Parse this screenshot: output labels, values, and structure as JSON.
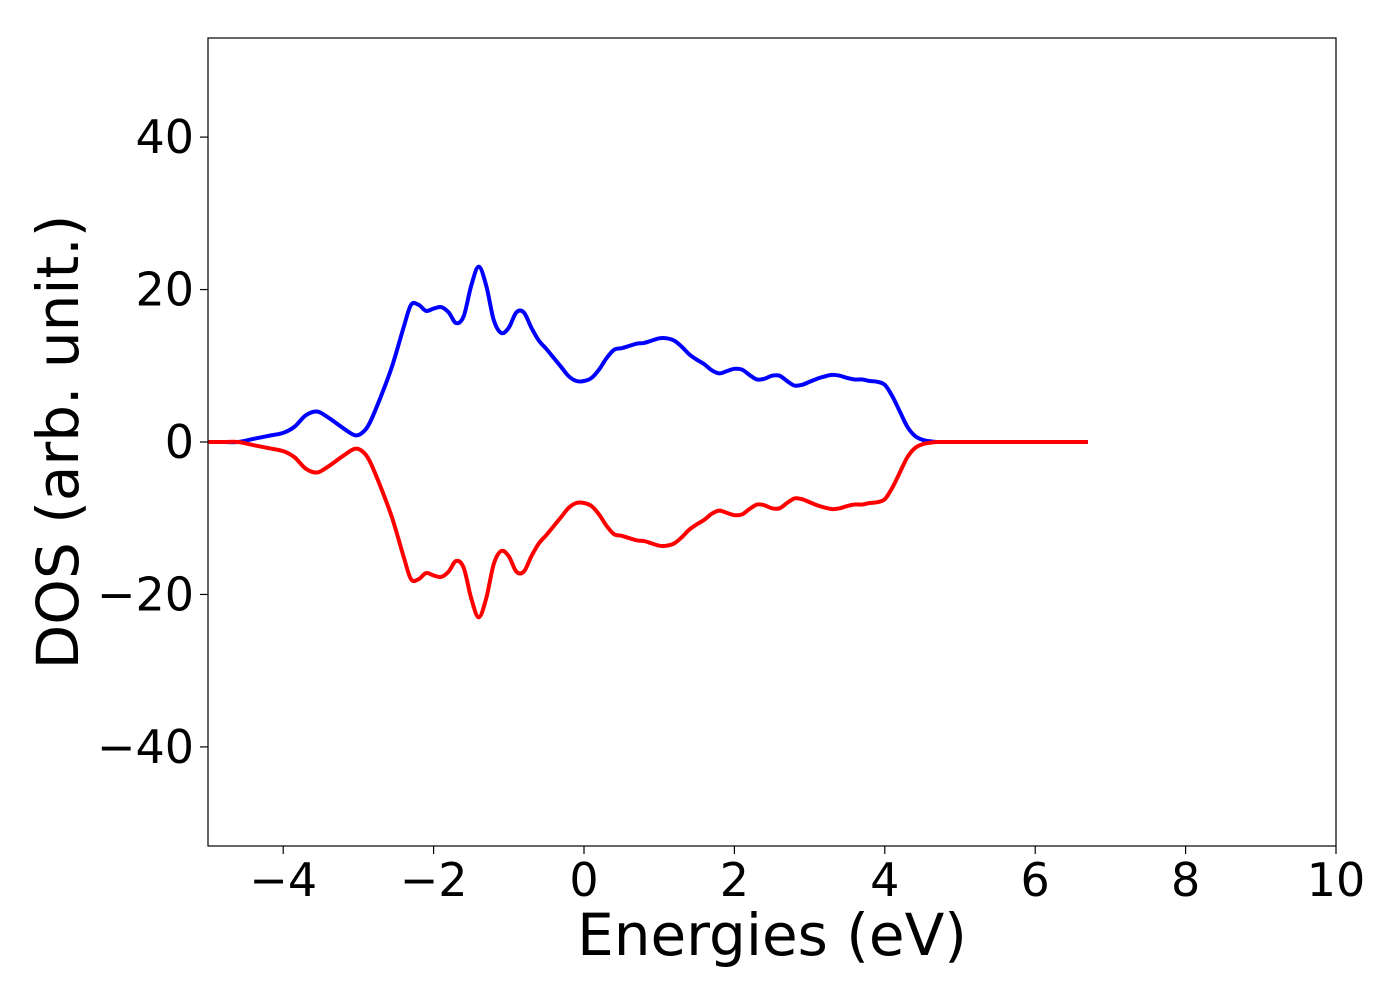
{
  "chart_data": {
    "type": "line",
    "title": "",
    "xlabel": "Energies (eV)",
    "ylabel": "DOS (arb. unit.)",
    "xlim": [
      -5,
      10
    ],
    "ylim": [
      -53,
      53
    ],
    "xticks": [
      -4,
      -2,
      0,
      2,
      4,
      6,
      8,
      10
    ],
    "yticks": [
      -40,
      -20,
      0,
      20,
      40
    ],
    "xtick_labels": [
      "−4",
      "−2",
      "0",
      "2",
      "4",
      "6",
      "8",
      "10"
    ],
    "ytick_labels": [
      "−40",
      "−20",
      "0",
      "20",
      "40"
    ],
    "grid": false,
    "legend": "none",
    "series": [
      {
        "color": "#0000ff",
        "x": [
          -5.0,
          -4.8,
          -4.6,
          -4.4,
          -4.2,
          -4.0,
          -3.85,
          -3.7,
          -3.55,
          -3.4,
          -3.2,
          -3.05,
          -2.95,
          -2.85,
          -2.7,
          -2.55,
          -2.4,
          -2.3,
          -2.2,
          -2.1,
          -2.0,
          -1.9,
          -1.8,
          -1.7,
          -1.6,
          -1.5,
          -1.4,
          -1.3,
          -1.2,
          -1.1,
          -1.0,
          -0.9,
          -0.8,
          -0.7,
          -0.6,
          -0.5,
          -0.4,
          -0.3,
          -0.2,
          -0.1,
          0.0,
          0.1,
          0.2,
          0.3,
          0.4,
          0.5,
          0.6,
          0.7,
          0.8,
          0.9,
          1.0,
          1.1,
          1.2,
          1.3,
          1.4,
          1.5,
          1.6,
          1.7,
          1.8,
          1.9,
          2.0,
          2.1,
          2.2,
          2.3,
          2.4,
          2.5,
          2.6,
          2.7,
          2.8,
          2.9,
          3.0,
          3.1,
          3.2,
          3.3,
          3.4,
          3.5,
          3.6,
          3.7,
          3.8,
          3.9,
          4.0,
          4.1,
          4.2,
          4.3,
          4.4,
          4.5,
          4.6,
          4.7,
          4.8,
          4.9,
          5.0,
          5.5,
          6.0,
          6.5,
          6.7
        ],
        "y": [
          0.0,
          0.0,
          0.0,
          0.4,
          0.8,
          1.2,
          2.0,
          3.5,
          4.0,
          3.2,
          1.8,
          0.9,
          1.2,
          2.5,
          6.0,
          10.0,
          15.0,
          18.0,
          18.0,
          17.2,
          17.5,
          17.7,
          17.0,
          15.6,
          16.5,
          20.5,
          23.0,
          20.5,
          16.0,
          14.3,
          15.0,
          17.0,
          17.0,
          15.0,
          13.3,
          12.2,
          11.0,
          9.8,
          8.6,
          8.0,
          8.0,
          8.4,
          9.5,
          11.0,
          12.1,
          12.3,
          12.6,
          12.9,
          13.0,
          13.3,
          13.6,
          13.6,
          13.3,
          12.5,
          11.5,
          10.8,
          10.2,
          9.4,
          9.0,
          9.3,
          9.6,
          9.5,
          8.8,
          8.2,
          8.3,
          8.7,
          8.7,
          8.0,
          7.4,
          7.5,
          7.9,
          8.3,
          8.6,
          8.8,
          8.7,
          8.4,
          8.2,
          8.2,
          8.0,
          7.9,
          7.5,
          6.0,
          4.0,
          2.0,
          0.8,
          0.3,
          0.1,
          0.0,
          0.0,
          0.0,
          0.0,
          0.0,
          0.0,
          0.0,
          0.0
        ]
      },
      {
        "color": "#ff0000",
        "x": [
          -5.0,
          -4.8,
          -4.6,
          -4.4,
          -4.2,
          -4.0,
          -3.85,
          -3.7,
          -3.55,
          -3.4,
          -3.2,
          -3.05,
          -2.95,
          -2.85,
          -2.7,
          -2.55,
          -2.4,
          -2.3,
          -2.2,
          -2.1,
          -2.0,
          -1.9,
          -1.8,
          -1.7,
          -1.6,
          -1.5,
          -1.4,
          -1.3,
          -1.2,
          -1.1,
          -1.0,
          -0.9,
          -0.8,
          -0.7,
          -0.6,
          -0.5,
          -0.4,
          -0.3,
          -0.2,
          -0.1,
          0.0,
          0.1,
          0.2,
          0.3,
          0.4,
          0.5,
          0.6,
          0.7,
          0.8,
          0.9,
          1.0,
          1.1,
          1.2,
          1.3,
          1.4,
          1.5,
          1.6,
          1.7,
          1.8,
          1.9,
          2.0,
          2.1,
          2.2,
          2.3,
          2.4,
          2.5,
          2.6,
          2.7,
          2.8,
          2.9,
          3.0,
          3.1,
          3.2,
          3.3,
          3.4,
          3.5,
          3.6,
          3.7,
          3.8,
          3.9,
          4.0,
          4.1,
          4.2,
          4.3,
          4.4,
          4.5,
          4.6,
          4.7,
          4.8,
          4.9,
          5.0,
          5.5,
          6.0,
          6.5,
          6.7
        ],
        "y": [
          0.0,
          0.0,
          0.0,
          -0.4,
          -0.8,
          -1.2,
          -2.0,
          -3.5,
          -4.0,
          -3.2,
          -1.8,
          -0.9,
          -1.2,
          -2.5,
          -6.0,
          -10.0,
          -15.0,
          -18.0,
          -18.0,
          -17.2,
          -17.5,
          -17.7,
          -17.0,
          -15.6,
          -16.5,
          -20.5,
          -23.0,
          -20.5,
          -16.0,
          -14.3,
          -15.0,
          -17.0,
          -17.0,
          -15.0,
          -13.3,
          -12.2,
          -11.0,
          -9.8,
          -8.6,
          -8.0,
          -8.0,
          -8.4,
          -9.5,
          -11.0,
          -12.1,
          -12.3,
          -12.6,
          -12.9,
          -13.0,
          -13.3,
          -13.6,
          -13.6,
          -13.3,
          -12.5,
          -11.5,
          -10.8,
          -10.2,
          -9.4,
          -9.0,
          -9.3,
          -9.6,
          -9.5,
          -8.8,
          -8.2,
          -8.3,
          -8.7,
          -8.7,
          -8.0,
          -7.4,
          -7.5,
          -7.9,
          -8.3,
          -8.6,
          -8.8,
          -8.7,
          -8.4,
          -8.2,
          -8.2,
          -8.0,
          -7.9,
          -7.5,
          -6.0,
          -4.0,
          -2.0,
          -0.8,
          -0.3,
          -0.1,
          0.0,
          0.0,
          0.0,
          0.0,
          0.0,
          0.0,
          0.0,
          0.0
        ]
      }
    ]
  }
}
